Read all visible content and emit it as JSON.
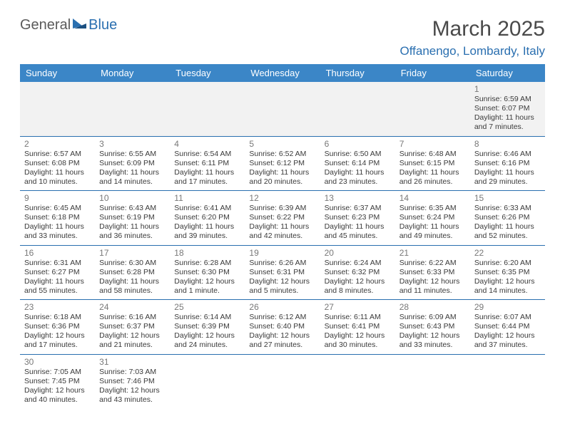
{
  "logo": {
    "primary": "General",
    "secondary": "Blue"
  },
  "title": "March 2025",
  "subtitle": "Offanengo, Lombardy, Italy",
  "colors": {
    "headerBar": "#3b86c7",
    "headerText": "#ffffff",
    "accent": "#2a6fb0",
    "mutedRow": "#f2f2f2",
    "dayNum": "#787878",
    "bodyText": "#3a3a3a",
    "titleText": "#4a4a4a"
  },
  "dayHeaders": [
    "Sunday",
    "Monday",
    "Tuesday",
    "Wednesday",
    "Thursday",
    "Friday",
    "Saturday"
  ],
  "weeks": [
    [
      null,
      null,
      null,
      null,
      null,
      null,
      {
        "n": "1",
        "sunrise": "6:59 AM",
        "sunset": "6:07 PM",
        "daylight": "11 hours and 7 minutes."
      }
    ],
    [
      {
        "n": "2",
        "sunrise": "6:57 AM",
        "sunset": "6:08 PM",
        "daylight": "11 hours and 10 minutes."
      },
      {
        "n": "3",
        "sunrise": "6:55 AM",
        "sunset": "6:09 PM",
        "daylight": "11 hours and 14 minutes."
      },
      {
        "n": "4",
        "sunrise": "6:54 AM",
        "sunset": "6:11 PM",
        "daylight": "11 hours and 17 minutes."
      },
      {
        "n": "5",
        "sunrise": "6:52 AM",
        "sunset": "6:12 PM",
        "daylight": "11 hours and 20 minutes."
      },
      {
        "n": "6",
        "sunrise": "6:50 AM",
        "sunset": "6:14 PM",
        "daylight": "11 hours and 23 minutes."
      },
      {
        "n": "7",
        "sunrise": "6:48 AM",
        "sunset": "6:15 PM",
        "daylight": "11 hours and 26 minutes."
      },
      {
        "n": "8",
        "sunrise": "6:46 AM",
        "sunset": "6:16 PM",
        "daylight": "11 hours and 29 minutes."
      }
    ],
    [
      {
        "n": "9",
        "sunrise": "6:45 AM",
        "sunset": "6:18 PM",
        "daylight": "11 hours and 33 minutes."
      },
      {
        "n": "10",
        "sunrise": "6:43 AM",
        "sunset": "6:19 PM",
        "daylight": "11 hours and 36 minutes."
      },
      {
        "n": "11",
        "sunrise": "6:41 AM",
        "sunset": "6:20 PM",
        "daylight": "11 hours and 39 minutes."
      },
      {
        "n": "12",
        "sunrise": "6:39 AM",
        "sunset": "6:22 PM",
        "daylight": "11 hours and 42 minutes."
      },
      {
        "n": "13",
        "sunrise": "6:37 AM",
        "sunset": "6:23 PM",
        "daylight": "11 hours and 45 minutes."
      },
      {
        "n": "14",
        "sunrise": "6:35 AM",
        "sunset": "6:24 PM",
        "daylight": "11 hours and 49 minutes."
      },
      {
        "n": "15",
        "sunrise": "6:33 AM",
        "sunset": "6:26 PM",
        "daylight": "11 hours and 52 minutes."
      }
    ],
    [
      {
        "n": "16",
        "sunrise": "6:31 AM",
        "sunset": "6:27 PM",
        "daylight": "11 hours and 55 minutes."
      },
      {
        "n": "17",
        "sunrise": "6:30 AM",
        "sunset": "6:28 PM",
        "daylight": "11 hours and 58 minutes."
      },
      {
        "n": "18",
        "sunrise": "6:28 AM",
        "sunset": "6:30 PM",
        "daylight": "12 hours and 1 minute."
      },
      {
        "n": "19",
        "sunrise": "6:26 AM",
        "sunset": "6:31 PM",
        "daylight": "12 hours and 5 minutes."
      },
      {
        "n": "20",
        "sunrise": "6:24 AM",
        "sunset": "6:32 PM",
        "daylight": "12 hours and 8 minutes."
      },
      {
        "n": "21",
        "sunrise": "6:22 AM",
        "sunset": "6:33 PM",
        "daylight": "12 hours and 11 minutes."
      },
      {
        "n": "22",
        "sunrise": "6:20 AM",
        "sunset": "6:35 PM",
        "daylight": "12 hours and 14 minutes."
      }
    ],
    [
      {
        "n": "23",
        "sunrise": "6:18 AM",
        "sunset": "6:36 PM",
        "daylight": "12 hours and 17 minutes."
      },
      {
        "n": "24",
        "sunrise": "6:16 AM",
        "sunset": "6:37 PM",
        "daylight": "12 hours and 21 minutes."
      },
      {
        "n": "25",
        "sunrise": "6:14 AM",
        "sunset": "6:39 PM",
        "daylight": "12 hours and 24 minutes."
      },
      {
        "n": "26",
        "sunrise": "6:12 AM",
        "sunset": "6:40 PM",
        "daylight": "12 hours and 27 minutes."
      },
      {
        "n": "27",
        "sunrise": "6:11 AM",
        "sunset": "6:41 PM",
        "daylight": "12 hours and 30 minutes."
      },
      {
        "n": "28",
        "sunrise": "6:09 AM",
        "sunset": "6:43 PM",
        "daylight": "12 hours and 33 minutes."
      },
      {
        "n": "29",
        "sunrise": "6:07 AM",
        "sunset": "6:44 PM",
        "daylight": "12 hours and 37 minutes."
      }
    ],
    [
      {
        "n": "30",
        "sunrise": "7:05 AM",
        "sunset": "7:45 PM",
        "daylight": "12 hours and 40 minutes."
      },
      {
        "n": "31",
        "sunrise": "7:03 AM",
        "sunset": "7:46 PM",
        "daylight": "12 hours and 43 minutes."
      },
      null,
      null,
      null,
      null,
      null
    ]
  ],
  "prefixes": {
    "sunrise": "Sunrise: ",
    "sunset": "Sunset: ",
    "daylight": "Daylight: "
  }
}
